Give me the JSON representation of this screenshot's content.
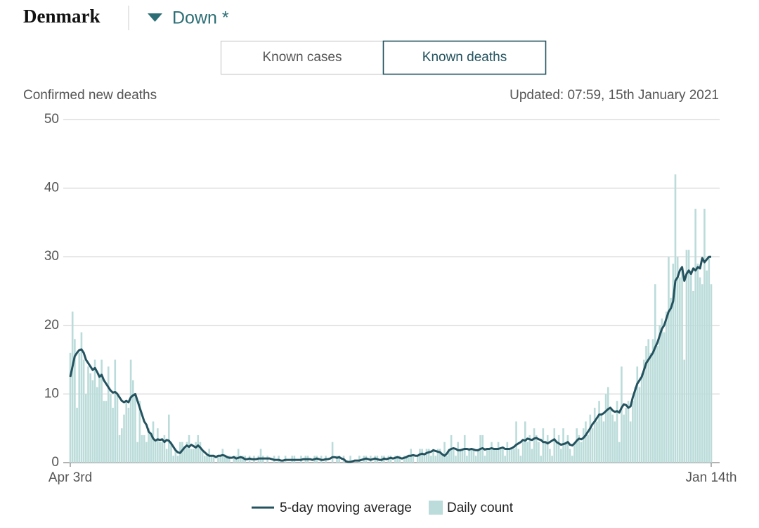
{
  "header": {
    "country": "Denmark",
    "trend": "Down *"
  },
  "tabs": [
    "Known cases",
    "Known deaths"
  ],
  "active_tab": 1,
  "chart_data": {
    "type": "bar",
    "y_label": "Confirmed new deaths",
    "updated": "Updated: 07:59, 15th January 2021",
    "ylim": [
      0,
      50
    ],
    "yticks": [
      0,
      10,
      20,
      30,
      40,
      50
    ],
    "grid": true,
    "categories": [
      "Apr 3rd",
      null,
      null,
      null,
      null,
      null,
      null,
      null,
      null,
      null,
      null,
      null,
      null,
      null,
      null,
      null,
      null,
      null,
      null,
      null,
      null,
      null,
      null,
      null,
      null,
      null,
      null,
      null,
      null,
      null,
      null,
      null,
      null,
      null,
      null,
      null,
      null,
      null,
      null,
      null,
      null,
      null,
      null,
      null,
      null,
      null,
      null,
      null,
      null,
      null,
      null,
      null,
      null,
      null,
      null,
      null,
      null,
      null,
      null,
      null,
      null,
      null,
      null,
      null,
      null,
      null,
      null,
      null,
      null,
      null,
      null,
      null,
      null,
      null,
      null,
      null,
      null,
      null,
      null,
      null,
      null,
      null,
      null,
      null,
      null,
      null,
      null,
      null,
      null,
      null,
      null,
      null,
      null,
      null,
      null,
      null,
      null,
      null,
      null,
      null,
      null,
      null,
      null,
      null,
      null,
      null,
      null,
      null,
      null,
      null,
      null,
      null,
      null,
      null,
      null,
      null,
      null,
      null,
      null,
      null,
      null,
      null,
      null,
      null,
      null,
      null,
      null,
      null,
      null,
      null,
      null,
      null,
      null,
      null,
      null,
      null,
      null,
      null,
      null,
      null,
      null,
      null,
      null,
      null,
      null,
      null,
      null,
      null,
      null,
      null,
      null,
      null,
      null,
      null,
      null,
      null,
      null,
      null,
      null,
      null,
      null,
      null,
      null,
      null,
      null,
      null,
      null,
      null,
      null,
      null,
      null,
      null,
      null,
      null,
      null,
      null,
      null,
      null,
      null,
      null,
      null,
      null,
      null,
      null,
      null,
      null,
      null,
      null,
      null,
      null,
      null,
      null,
      null,
      null,
      null,
      null,
      null,
      null,
      null,
      null,
      null,
      null,
      null,
      null,
      null,
      null,
      null,
      null,
      null,
      null,
      null,
      null,
      null,
      null,
      null,
      null,
      null,
      null,
      null,
      null,
      null,
      null,
      null,
      null,
      null,
      null,
      null,
      null,
      null,
      null,
      null,
      null,
      null,
      null,
      null,
      null,
      null,
      null,
      null,
      null,
      null,
      null,
      null,
      null,
      null,
      null,
      null,
      null,
      null,
      null,
      null,
      null,
      null,
      null,
      null,
      null,
      null,
      null,
      null,
      null,
      null,
      null,
      null,
      null,
      null,
      null,
      null,
      null,
      null,
      null,
      null,
      null,
      null,
      null,
      null,
      null,
      null,
      null,
      null,
      null,
      null,
      null,
      null,
      null,
      null,
      null,
      "Jan 14th"
    ],
    "series": [
      {
        "name": "5-day moving average",
        "type": "line",
        "color": "#24535f",
        "values": [
          12.5,
          14,
          15.5,
          16,
          16.4,
          16.5,
          16,
          15,
          14.5,
          14,
          13.5,
          13.8,
          13.2,
          12.5,
          12.8,
          12,
          11.5,
          11,
          10.5,
          10.2,
          10.3,
          10,
          9.5,
          9,
          8.8,
          9,
          8.8,
          9.5,
          9.8,
          10,
          9,
          8,
          7,
          6,
          5.5,
          4.5,
          4.2,
          3.5,
          3.2,
          3.4,
          3.3,
          3.4,
          3,
          3.3,
          3.2,
          2.8,
          2.3,
          1.8,
          1.5,
          1.4,
          1.8,
          2.2,
          2.5,
          2.3,
          2.6,
          2.4,
          2.2,
          2.5,
          2.2,
          1.8,
          1.5,
          1.2,
          1,
          1,
          1,
          0.8,
          1,
          1,
          1.1,
          1,
          0.8,
          0.7,
          0.7,
          0.8,
          0.6,
          0.7,
          0.8,
          0.7,
          0.5,
          0.5,
          0.6,
          0.5,
          0.5,
          0.5,
          0.6,
          0.6,
          0.6,
          0.6,
          0.6,
          0.6,
          0.5,
          0.4,
          0.4,
          0.4,
          0.3,
          0.3,
          0.4,
          0.4,
          0.4,
          0.4,
          0.4,
          0.4,
          0.4,
          0.4,
          0.5,
          0.5,
          0.5,
          0.5,
          0.4,
          0.5,
          0.6,
          0.5,
          0.4,
          0.4,
          0.5,
          0.5,
          0.6,
          0.8,
          0.8,
          0.7,
          0.8,
          0.6,
          0.5,
          0.2,
          0.1,
          0.1,
          0.2,
          0.3,
          0.3,
          0.3,
          0.4,
          0.5,
          0.6,
          0.5,
          0.4,
          0.5,
          0.6,
          0.5,
          0.4,
          0.4,
          0.6,
          0.5,
          0.6,
          0.7,
          0.6,
          0.7,
          0.8,
          0.7,
          0.6,
          0.7,
          0.8,
          1,
          1,
          1.1,
          1,
          1,
          1.2,
          1.3,
          1.2,
          1.4,
          1.5,
          1.6,
          1.8,
          1.7,
          1.6,
          1.5,
          1.2,
          1,
          1.3,
          1.8,
          2,
          2.1,
          2,
          1.8,
          1.8,
          1.9,
          2,
          2,
          1.9,
          2,
          1.9,
          1.8,
          1.8,
          2,
          2.1,
          1.9,
          2,
          2,
          2.1,
          2,
          2,
          2,
          2.1,
          2.2,
          2,
          2,
          2,
          2.1,
          2.3,
          2.6,
          2.8,
          3,
          3.3,
          3.2,
          3.5,
          3.4,
          3.3,
          3.5,
          3.6,
          3.4,
          3.3,
          3,
          3,
          2.8,
          3,
          3.2,
          3.4,
          3,
          2.8,
          2.6,
          2.7,
          2.8,
          3,
          2.6,
          2.5,
          2.8,
          3.2,
          3.5,
          3.4,
          3.6,
          4,
          4.5,
          5,
          5.6,
          6,
          6.5,
          7,
          7,
          7.2,
          7.5,
          7.8,
          8,
          7.6,
          7.4,
          7.5,
          7.3,
          8,
          8.5,
          8.4,
          8,
          8.2,
          9.5,
          10.5,
          11.5,
          12,
          12.5,
          13.5,
          14.5,
          15,
          15.5,
          16,
          16.8,
          17.5,
          18.5,
          19.5,
          20,
          21,
          22,
          22.5,
          23.5,
          26.5,
          27,
          28,
          28.5,
          26.5,
          27.5,
          28,
          27.5,
          28.3,
          28,
          28.5,
          28.3,
          29.8,
          29.2,
          29.6,
          30,
          30
        ]
      },
      {
        "name": "Daily count",
        "type": "bar",
        "color": "#bbdcda",
        "values": [
          16,
          22,
          18,
          8,
          16,
          19,
          15,
          10,
          14,
          13,
          12,
          15,
          11,
          13,
          15,
          9,
          9,
          14,
          10,
          8,
          15,
          10,
          4,
          5,
          7,
          9,
          8,
          15,
          12,
          10,
          3,
          9,
          4,
          4,
          3,
          5,
          4,
          6,
          3,
          5,
          3,
          3,
          4,
          2,
          7,
          3,
          1,
          2,
          1,
          3,
          3,
          2,
          3,
          4,
          2,
          2,
          3,
          4,
          3,
          2,
          1,
          1,
          2,
          1,
          1,
          0,
          1,
          1,
          2,
          1,
          1,
          1,
          0,
          1,
          1,
          2,
          1,
          1,
          1,
          0,
          1,
          0,
          1,
          0,
          1,
          2,
          1,
          0,
          1,
          0,
          0,
          1,
          0,
          1,
          0,
          0,
          1,
          0,
          0,
          1,
          1,
          0,
          0,
          1,
          0,
          1,
          1,
          0,
          0,
          1,
          1,
          0,
          1,
          0,
          1,
          0,
          0,
          3,
          0,
          1,
          1,
          0,
          1,
          0,
          0,
          1,
          0,
          0,
          0,
          1,
          0,
          1,
          1,
          0,
          1,
          0,
          1,
          1,
          0,
          1,
          1,
          0,
          1,
          1,
          0,
          1,
          1,
          1,
          0,
          1,
          1,
          1,
          2,
          1,
          0,
          1,
          2,
          2,
          1,
          2,
          2,
          1,
          2,
          1,
          2,
          2,
          1,
          3,
          1,
          2,
          4,
          2,
          1,
          3,
          2,
          2,
          4,
          1,
          2,
          2,
          2,
          1,
          2,
          4,
          4,
          1,
          2,
          2,
          3,
          2,
          2,
          3,
          2,
          2,
          1,
          3,
          2,
          2,
          2,
          6,
          2,
          1,
          3,
          6,
          3,
          4,
          2,
          5,
          4,
          3,
          1,
          5,
          3,
          4,
          2,
          1,
          5,
          3,
          4,
          2,
          5,
          3,
          4,
          2,
          1,
          3,
          5,
          4,
          3,
          5,
          6,
          4,
          7,
          5,
          8,
          6,
          9,
          7,
          6,
          10,
          11,
          8,
          7,
          6,
          9,
          3,
          14,
          7,
          8,
          9,
          6,
          9,
          11,
          14,
          11,
          13,
          15,
          17,
          18,
          16,
          18,
          26,
          17,
          20,
          21,
          19,
          22,
          30,
          24,
          29,
          42,
          30,
          27,
          28,
          15,
          31,
          31,
          28,
          25,
          37,
          29,
          27,
          26,
          37,
          28,
          30,
          26
        ]
      }
    ]
  }
}
